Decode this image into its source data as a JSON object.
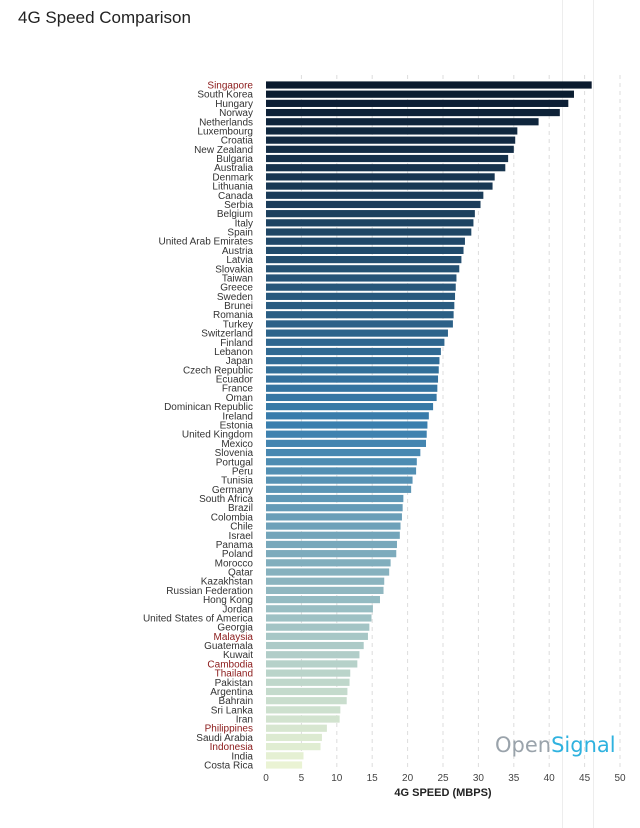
{
  "page": {
    "title": "4G Speed Comparison"
  },
  "brand": {
    "part1": "Open",
    "part2": "Signal"
  },
  "chart_data": {
    "type": "bar",
    "orientation": "horizontal",
    "title": "4G Speed Comparison",
    "xlabel": "4G SPEED (MBPS)",
    "ylabel": "",
    "xlim": [
      0,
      50
    ],
    "xticks": [
      0,
      5,
      10,
      15,
      20,
      25,
      30,
      35,
      40,
      45,
      50
    ],
    "grid": "vertical dashed",
    "colors": {
      "dark": "#0a1a2e",
      "mid": "#3a7fae",
      "light": "#eaf3d4",
      "highlight_label": "#8b1a1a",
      "label": "#333333"
    },
    "categories": [
      "Singapore",
      "South Korea",
      "Hungary",
      "Norway",
      "Netherlands",
      "Luxembourg",
      "Croatia",
      "New Zealand",
      "Bulgaria",
      "Australia",
      "Denmark",
      "Lithuania",
      "Canada",
      "Serbia",
      "Belgium",
      "Italy",
      "Spain",
      "United Arab Emirates",
      "Austria",
      "Latvia",
      "Slovakia",
      "Taiwan",
      "Greece",
      "Sweden",
      "Brunei",
      "Romania",
      "Turkey",
      "Switzerland",
      "Finland",
      "Lebanon",
      "Japan",
      "Czech Republic",
      "Ecuador",
      "France",
      "Oman",
      "Dominican Republic",
      "Ireland",
      "Estonia",
      "United Kingdom",
      "Mexico",
      "Slovenia",
      "Portugal",
      "Peru",
      "Tunisia",
      "Germany",
      "South Africa",
      "Brazil",
      "Colombia",
      "Chile",
      "Israel",
      "Panama",
      "Poland",
      "Morocco",
      "Qatar",
      "Kazakhstan",
      "Russian Federation",
      "Hong Kong",
      "Jordan",
      "United States of America",
      "Georgia",
      "Malaysia",
      "Guatemala",
      "Kuwait",
      "Cambodia",
      "Thailand",
      "Pakistan",
      "Argentina",
      "Bahrain",
      "Sri Lanka",
      "Iran",
      "Philippines",
      "Saudi Arabia",
      "Indonesia",
      "India",
      "Costa Rica"
    ],
    "values": [
      46.0,
      43.5,
      42.7,
      41.5,
      38.5,
      35.5,
      35.2,
      35.0,
      34.2,
      33.8,
      32.3,
      32.0,
      30.7,
      30.3,
      29.5,
      29.3,
      29.0,
      28.1,
      27.9,
      27.6,
      27.3,
      26.9,
      26.8,
      26.7,
      26.6,
      26.5,
      26.4,
      25.7,
      25.2,
      24.7,
      24.5,
      24.4,
      24.3,
      24.2,
      24.1,
      23.6,
      23.0,
      22.8,
      22.7,
      22.6,
      21.8,
      21.3,
      21.2,
      20.7,
      20.5,
      19.4,
      19.3,
      19.2,
      19.0,
      18.9,
      18.5,
      18.4,
      17.6,
      17.4,
      16.7,
      16.6,
      16.1,
      15.1,
      14.9,
      14.6,
      14.4,
      13.8,
      13.2,
      12.9,
      11.9,
      11.8,
      11.5,
      11.4,
      10.5,
      10.4,
      8.6,
      7.9,
      7.7,
      5.3,
      5.1
    ],
    "highlighted": [
      "Singapore",
      "Malaysia",
      "Cambodia",
      "Thailand",
      "Philippines",
      "Indonesia"
    ]
  }
}
